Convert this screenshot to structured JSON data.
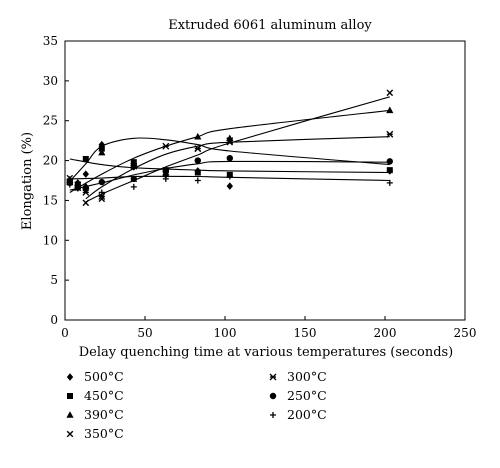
{
  "chart_data": {
    "type": "scatter",
    "title": "Extruded 6061 aluminum alloy",
    "xlabel": "Delay quenching time at various temperatures (seconds)",
    "ylabel": "Elongation (%)",
    "xlim": [
      0,
      250
    ],
    "ylim": [
      0,
      35
    ],
    "x_ticks": [
      "0",
      "50",
      "100",
      "150",
      "200",
      "250"
    ],
    "y_ticks": [
      "0",
      "5",
      "10",
      "15",
      "20",
      "25",
      "30",
      "35"
    ],
    "grid": false,
    "legend_position": "bottom",
    "series": [
      {
        "name": "500°C",
        "marker": "diamond",
        "points": [
          [
            3,
            17.5
          ],
          [
            8,
            17.2
          ],
          [
            13,
            18.3
          ],
          [
            23,
            22.0
          ],
          [
            43,
            19.2
          ],
          [
            63,
            18.2
          ],
          [
            83,
            18.7
          ],
          [
            103,
            16.8
          ],
          [
            203,
            18.7
          ]
        ],
        "fit": [
          [
            3,
            17.4
          ],
          [
            13,
            19.6
          ],
          [
            23,
            21.8
          ],
          [
            43,
            22.8
          ],
          [
            63,
            22.6
          ],
          [
            83,
            22.0
          ],
          [
            103,
            21.2
          ],
          [
            203,
            19.5
          ]
        ]
      },
      {
        "name": "450°C",
        "marker": "square",
        "points": [
          [
            3,
            17.4
          ],
          [
            8,
            17.0
          ],
          [
            13,
            20.2
          ],
          [
            23,
            21.5
          ],
          [
            43,
            19.8
          ],
          [
            63,
            18.8
          ],
          [
            83,
            18.5
          ],
          [
            103,
            18.2
          ],
          [
            203,
            18.8
          ]
        ],
        "fit": [
          [
            3,
            20.2
          ],
          [
            23,
            19.5
          ],
          [
            43,
            19.1
          ],
          [
            83,
            18.8
          ],
          [
            103,
            18.7
          ],
          [
            203,
            18.5
          ]
        ]
      },
      {
        "name": "390°C",
        "marker": "triangle",
        "points": [
          [
            3,
            17.6
          ],
          [
            8,
            17.2
          ],
          [
            13,
            16.8
          ],
          [
            23,
            21.0
          ],
          [
            43,
            19.7
          ],
          [
            63,
            18.5
          ],
          [
            83,
            23.0
          ],
          [
            103,
            22.8
          ],
          [
            203,
            26.3
          ]
        ],
        "fit": [
          [
            3,
            16.0
          ],
          [
            23,
            18.3
          ],
          [
            43,
            20.3
          ],
          [
            63,
            21.8
          ],
          [
            83,
            23.0
          ],
          [
            103,
            24.0
          ],
          [
            203,
            26.3
          ]
        ]
      },
      {
        "name": "350°C",
        "marker": "x",
        "points": [
          [
            3,
            17.8
          ],
          [
            8,
            17.0
          ],
          [
            13,
            14.7
          ],
          [
            23,
            15.2
          ],
          [
            43,
            17.7
          ],
          [
            63,
            18.3
          ],
          [
            83,
            21.5
          ],
          [
            103,
            22.3
          ],
          [
            203,
            28.5
          ]
        ],
        "fit": [
          [
            13,
            14.8
          ],
          [
            23,
            15.8
          ],
          [
            43,
            17.5
          ],
          [
            63,
            19.2
          ],
          [
            83,
            20.7
          ],
          [
            103,
            22.2
          ],
          [
            203,
            28.0
          ]
        ]
      },
      {
        "name": "300°C",
        "marker": "asterisk",
        "points": [
          [
            3,
            17.3
          ],
          [
            8,
            16.6
          ],
          [
            13,
            16.0
          ],
          [
            23,
            15.5
          ],
          [
            43,
            19.3
          ],
          [
            63,
            21.8
          ],
          [
            83,
            21.5
          ],
          [
            103,
            22.5
          ],
          [
            203,
            23.3
          ]
        ],
        "fit": [
          [
            13,
            15.2
          ],
          [
            23,
            16.7
          ],
          [
            43,
            19.0
          ],
          [
            63,
            20.8
          ],
          [
            83,
            21.8
          ],
          [
            103,
            22.3
          ],
          [
            203,
            23.0
          ]
        ]
      },
      {
        "name": "250°C",
        "marker": "circle",
        "points": [
          [
            3,
            17.2
          ],
          [
            8,
            16.6
          ],
          [
            13,
            16.6
          ],
          [
            23,
            17.3
          ],
          [
            43,
            17.7
          ],
          [
            63,
            18.7
          ],
          [
            83,
            20.0
          ],
          [
            103,
            20.3
          ],
          [
            203,
            19.9
          ]
        ],
        "fit": [
          [
            3,
            16.3
          ],
          [
            23,
            17.2
          ],
          [
            43,
            18.2
          ],
          [
            63,
            19.0
          ],
          [
            83,
            19.6
          ],
          [
            103,
            19.9
          ],
          [
            203,
            19.8
          ]
        ]
      },
      {
        "name": "200°C",
        "marker": "plus",
        "points": [
          [
            3,
            17.0
          ],
          [
            8,
            16.5
          ],
          [
            13,
            16.3
          ],
          [
            23,
            16.0
          ],
          [
            43,
            16.7
          ],
          [
            63,
            17.7
          ],
          [
            83,
            17.5
          ],
          [
            103,
            18.0
          ],
          [
            203,
            17.2
          ]
        ],
        "fit": [
          [
            3,
            17.7
          ],
          [
            23,
            17.8
          ],
          [
            43,
            18.0
          ],
          [
            83,
            18.0
          ],
          [
            103,
            17.9
          ],
          [
            203,
            17.5
          ]
        ]
      }
    ]
  }
}
